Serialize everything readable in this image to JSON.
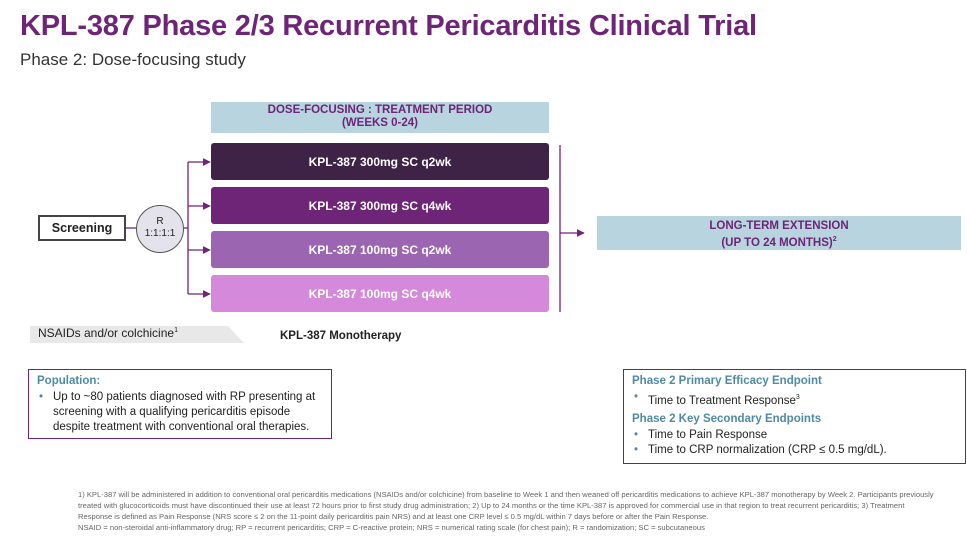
{
  "title": "KPL-387 Phase 2/3 Recurrent Pericarditis Clinical Trial",
  "subtitle": "Phase 2: Dose-focusing study",
  "treatment_period": {
    "line1": "DOSE-FOCUSING : TREATMENT PERIOD",
    "line2": "(WEEKS 0-24)"
  },
  "screening": "Screening",
  "randomization": {
    "line1": "R",
    "line2": "1:1:1:1"
  },
  "arms": [
    {
      "label": "KPL-387 300mg SC q2wk",
      "color": "#3f2347"
    },
    {
      "label": "KPL-387 300mg SC q4wk",
      "color": "#6e2477"
    },
    {
      "label": "KPL-387 100mg SC q2wk",
      "color": "#9b65b1"
    },
    {
      "label": "KPL-387 100mg SC q4wk",
      "color": "#d489da"
    }
  ],
  "extension": {
    "line1": "LONG-TERM EXTENSION",
    "line2": "(UP TO 24 MONTHS)",
    "sup": "2"
  },
  "nsaids": {
    "text": "NSAIDs and/or colchicine",
    "sup": "1"
  },
  "monotherapy": "KPL-387 Monotherapy",
  "population": {
    "heading": "Population:",
    "text": "Up to ~80 patients diagnosed with RP presenting at screening with a qualifying pericarditis episode despite treatment with conventional oral therapies."
  },
  "endpoints": {
    "primary_heading": "Phase 2 Primary Efficacy Endpoint",
    "primary_item": "Time to Treatment Response",
    "primary_sup": "3",
    "secondary_heading": "Phase 2 Key Secondary Endpoints",
    "secondary_items": [
      "Time to Pain Response",
      "Time to CRP normalization (CRP ≤ 0.5 mg/dL)."
    ]
  },
  "footnotes": {
    "f1": "1) KPL-387 will be administered in addition to conventional oral pericarditis medications (NSAIDs and/or colchicine) from baseline to Week 1 and then weaned off pericarditis medications to achieve KPL-387 monotherapy by Week 2. Participants previously treated with glucocorticoids must have discontinued their use at least 72 hours prior to first study drug administration; 2) Up to 24 months or the time KPL-387 is approved for commercial use in that region to treat recurrent pericarditis; 3) Treatment Response is defined as Pain Response (NRS score ≤ 2 on the 11-point daily pericarditis pain NRS) and at least one CRP level ≤ 0.5 mg/dL within 7 days before or after the Pain Response.",
    "abbrev": "NSAID = non-steroidal anti-inflammatory drug; RP = recurrent pericarditis; CRP = C-reactive protein; NRS = numerical rating scale (for chest pain); R = randomization; SC = subcutaneous"
  },
  "colors": {
    "purple": "#6e2477",
    "light_blue": "#b8d4df",
    "teal_heading": "#4f8aa5"
  }
}
